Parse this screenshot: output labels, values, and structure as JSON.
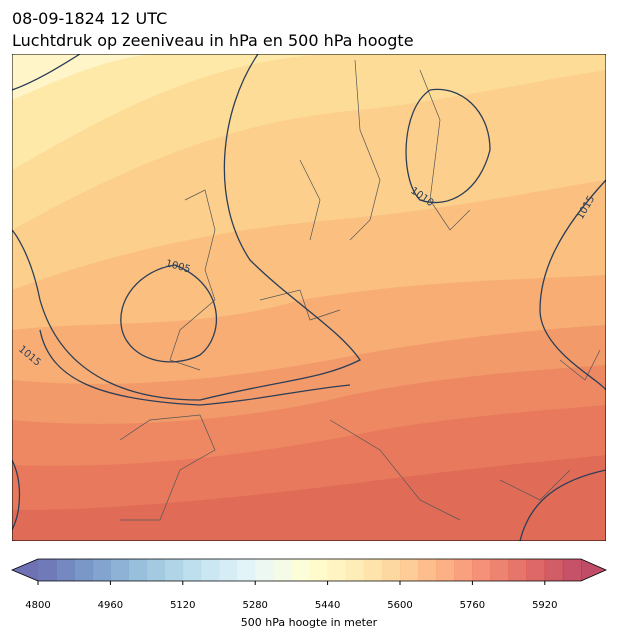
{
  "header": {
    "date": "08-09-1824 12 UTC",
    "title": "Luchtdruk op zeeniveau in hPa en 500 hPa hoogte"
  },
  "map": {
    "isobar_labels": [
      "1010",
      "1005",
      "1015",
      "1015"
    ]
  },
  "colorbar": {
    "label": "500 hPa hoogte in meter",
    "lim": [
      4800,
      6000
    ],
    "step": 40,
    "ticks": [
      4800,
      4960,
      5120,
      5280,
      5440,
      5600,
      5760,
      5920
    ]
  }
}
